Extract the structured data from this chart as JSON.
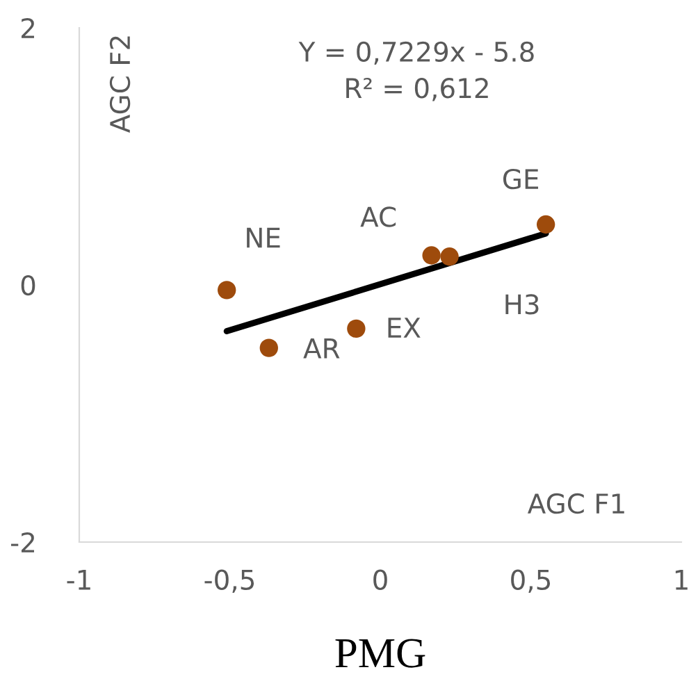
{
  "chart_data": {
    "type": "scatter",
    "xlabel": "PMG",
    "xlim": [
      -1,
      1
    ],
    "ylim": [
      -2,
      2
    ],
    "xticks": [
      {
        "value": -1,
        "label": "-1"
      },
      {
        "value": -0.5,
        "label": "-0,5"
      },
      {
        "value": 0,
        "label": "0"
      },
      {
        "value": 0.5,
        "label": "0,5"
      },
      {
        "value": 1,
        "label": "1"
      }
    ],
    "yticks": [
      {
        "value": -2,
        "label": "-2"
      },
      {
        "value": 0,
        "label": "0"
      },
      {
        "value": 2,
        "label": "2"
      }
    ],
    "grid": false,
    "series": [
      {
        "marker": "circle",
        "color": "#9e4b0c",
        "x": [
          -0.51,
          -0.37,
          -0.08,
          0.17,
          0.23,
          0.55
        ],
        "values": [
          -0.04,
          -0.49,
          -0.34,
          0.23,
          0.22,
          0.47
        ]
      },
      {
        "type": "line",
        "marker": "none",
        "color": "#000000",
        "x": [
          -0.51,
          0.55
        ],
        "values": [
          -0.36,
          0.4
        ]
      }
    ],
    "annotations": [
      "Y = 0,7229x - 5.8\nR² = 0,612",
      "AGC F2",
      "AGC F1",
      {
        "text": "NE",
        "x": -0.51,
        "y": -0.04
      },
      {
        "text": "AR",
        "x": -0.37,
        "y": -0.49
      },
      {
        "text": "EX",
        "x": -0.08,
        "y": -0.34
      },
      {
        "text": "AC",
        "x": 0.17,
        "y": 0.23
      },
      {
        "text": "H3",
        "x": 0.23,
        "y": 0.22
      },
      {
        "text": "GE",
        "x": 0.55,
        "y": 0.47
      }
    ]
  }
}
